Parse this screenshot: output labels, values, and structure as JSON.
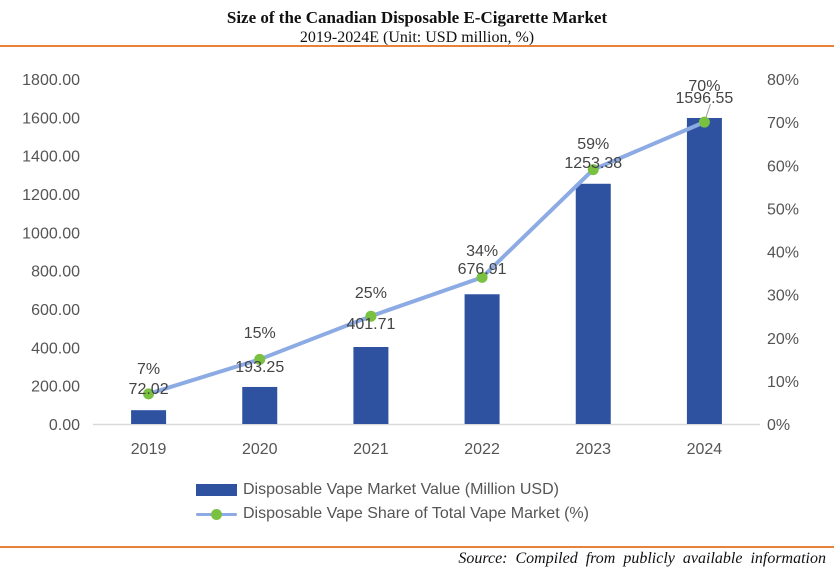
{
  "header": {
    "title": "Size of the Canadian Disposable E-Cigarette Market",
    "subtitle": "2019-2024E (Unit: USD million, %)"
  },
  "footer": {
    "source": "Source: Compiled from publicly available information"
  },
  "colors": {
    "bar": "#2E52A0",
    "line": "#8CAAE3",
    "marker": "#7AC142",
    "rule": "#E8823A",
    "axis": "#D9D9D9"
  },
  "chart_data": {
    "type": "bar",
    "title": "Size of the Canadian Disposable E-Cigarette Market",
    "subtitle": "2019-2024E (Unit: USD million, %)",
    "xlabel": "",
    "ylabel": "",
    "categories": [
      "2019",
      "2020",
      "2021",
      "2022",
      "2023",
      "2024"
    ],
    "series": [
      {
        "name": "Disposable Vape Market Value (Million USD)",
        "type": "bar",
        "axis": "left",
        "values": [
          72.02,
          193.25,
          401.71,
          676.91,
          1253.38,
          1596.55
        ],
        "labels": [
          "72.02",
          "193.25",
          "401.71",
          "676.91",
          "1253.38",
          "1596.55"
        ]
      },
      {
        "name": "Disposable Vape Share of Total Vape Market (%)",
        "type": "line",
        "axis": "right",
        "values": [
          7,
          15,
          25,
          34,
          59,
          70
        ],
        "labels": [
          "7%",
          "15%",
          "25%",
          "34%",
          "59%",
          "70%"
        ]
      }
    ],
    "y_left": {
      "ylim": [
        0,
        1800
      ],
      "ticks": [
        "0.00",
        "200.00",
        "400.00",
        "600.00",
        "800.00",
        "1000.00",
        "1200.00",
        "1400.00",
        "1600.00",
        "1800.00"
      ]
    },
    "y_right": {
      "ylim": [
        0,
        80
      ],
      "ticks": [
        "0%",
        "10%",
        "20%",
        "30%",
        "40%",
        "50%",
        "60%",
        "70%",
        "80%"
      ]
    },
    "grid": false,
    "legend": "bottom"
  }
}
